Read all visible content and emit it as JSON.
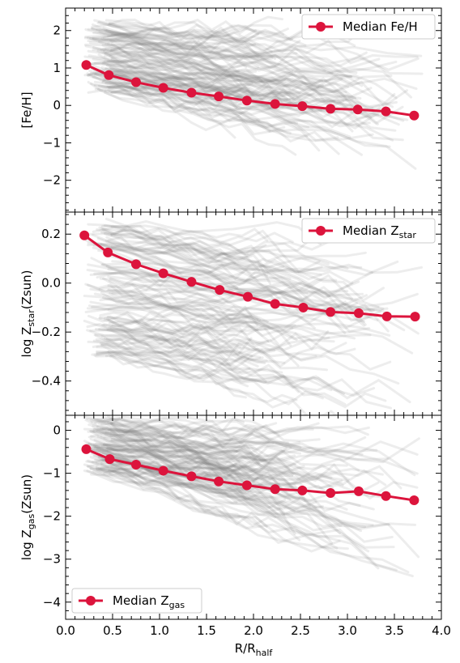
{
  "colors": {
    "median": "#dc143c",
    "background_line": "#808080",
    "axes": "#000000"
  },
  "x_axis": {
    "label_main": "R/R",
    "label_sub": "half",
    "lim": [
      0.0,
      4.0
    ],
    "ticks": [
      0.0,
      0.5,
      1.0,
      1.5,
      2.0,
      2.5,
      3.0,
      3.5,
      4.0
    ],
    "tick_labels": [
      "0.0",
      "0.5",
      "1.0",
      "1.5",
      "2.0",
      "2.5",
      "3.0",
      "3.5",
      "4.0"
    ]
  },
  "chart_data": [
    {
      "type": "line",
      "panel": "top",
      "ylabel": "[Fe/H]",
      "ylim": [
        -2.85,
        2.6
      ],
      "yticks": [
        2,
        1,
        0,
        -1,
        -2
      ],
      "ytick_labels": [
        "2",
        "1",
        "0",
        "−1",
        "−2"
      ],
      "legend": {
        "label_main": "Median Fe/H",
        "label_sub": "",
        "position": "top-right"
      },
      "series": [
        {
          "name": "Median Fe/H",
          "x": [
            0.22,
            0.46,
            0.75,
            1.04,
            1.34,
            1.63,
            1.93,
            2.23,
            2.52,
            2.82,
            3.11,
            3.41,
            3.71
          ],
          "y": [
            1.08,
            0.81,
            0.62,
            0.47,
            0.34,
            0.24,
            0.13,
            0.04,
            -0.02,
            -0.09,
            -0.11,
            -0.16,
            -0.27
          ]
        }
      ],
      "background_profiles": {
        "description": "many individual galaxy profiles, light gray",
        "count": 110,
        "y_start_range": [
          0.3,
          2.3
        ],
        "slope_range": [
          -0.8,
          0.0
        ]
      }
    },
    {
      "type": "line",
      "panel": "middle",
      "ylabel_main": "log Z",
      "ylabel_sub": "star",
      "ylabel_tail": "(Zsun)",
      "ylim": [
        -0.54,
        0.29
      ],
      "yticks": [
        0.2,
        0.0,
        -0.2,
        -0.4
      ],
      "ytick_labels": [
        "0.2",
        "0.0",
        "−0.2",
        "−0.4"
      ],
      "legend": {
        "label_main": "Median Z",
        "label_sub": "star",
        "position": "top-right"
      },
      "series": [
        {
          "name": "Median Zstar",
          "x": [
            0.2,
            0.45,
            0.75,
            1.04,
            1.34,
            1.64,
            1.94,
            2.23,
            2.53,
            2.82,
            3.12,
            3.42,
            3.72
          ],
          "y": [
            0.195,
            0.125,
            0.077,
            0.04,
            0.005,
            -0.028,
            -0.056,
            -0.085,
            -0.1,
            -0.118,
            -0.123,
            -0.136,
            -0.137
          ]
        }
      ],
      "background_profiles": {
        "description": "many individual galaxy profiles, light gray",
        "count": 110,
        "y_start_range": [
          -0.3,
          0.25
        ],
        "slope_range": [
          -0.12,
          0.0
        ]
      }
    },
    {
      "type": "line",
      "panel": "bottom",
      "ylabel_main": "log Z",
      "ylabel_sub": "gas",
      "ylabel_tail": "(Zsun)",
      "ylim": [
        -4.4,
        0.35
      ],
      "yticks": [
        0,
        -1,
        -2,
        -3,
        -4
      ],
      "ytick_labels": [
        "0",
        "−1",
        "−2",
        "−3",
        "−4"
      ],
      "legend": {
        "label_main": "Median Z",
        "label_sub": "gas",
        "position": "bottom-left"
      },
      "series": [
        {
          "name": "Median Zgas",
          "x": [
            0.22,
            0.47,
            0.75,
            1.04,
            1.34,
            1.63,
            1.93,
            2.23,
            2.52,
            2.82,
            3.12,
            3.41,
            3.71
          ],
          "y": [
            -0.44,
            -0.67,
            -0.8,
            -0.94,
            -1.07,
            -1.19,
            -1.28,
            -1.37,
            -1.4,
            -1.46,
            -1.42,
            -1.53,
            -1.63
          ]
        }
      ],
      "background_profiles": {
        "description": "many individual galaxy profiles, light gray",
        "count": 110,
        "y_start_range": [
          -1.0,
          0.3
        ],
        "slope_range": [
          -0.9,
          0.0
        ]
      }
    }
  ]
}
